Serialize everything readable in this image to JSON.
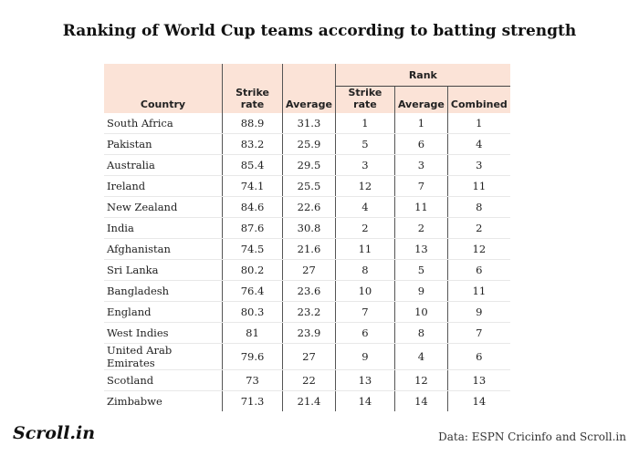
{
  "title": "Ranking of World Cup teams according to batting strength",
  "chart_data": {
    "type": "table",
    "group_header": "Rank",
    "columns": [
      "Country",
      "Strike rate",
      "Average",
      "Strike rate",
      "Average",
      "Combined"
    ],
    "rows": [
      [
        "South Africa",
        "88.9",
        "31.3",
        "1",
        "1",
        "1"
      ],
      [
        "Pakistan",
        "83.2",
        "25.9",
        "5",
        "6",
        "4"
      ],
      [
        "Australia",
        "85.4",
        "29.5",
        "3",
        "3",
        "3"
      ],
      [
        "Ireland",
        "74.1",
        "25.5",
        "12",
        "7",
        "11"
      ],
      [
        "New Zealand",
        "84.6",
        "22.6",
        "4",
        "11",
        "8"
      ],
      [
        "India",
        "87.6",
        "30.8",
        "2",
        "2",
        "2"
      ],
      [
        "Afghanistan",
        "74.5",
        "21.6",
        "11",
        "13",
        "12"
      ],
      [
        "Sri Lanka",
        "80.2",
        "27",
        "8",
        "5",
        "6"
      ],
      [
        "Bangladesh",
        "76.4",
        "23.6",
        "10",
        "9",
        "11"
      ],
      [
        "England",
        "80.3",
        "23.2",
        "7",
        "10",
        "9"
      ],
      [
        "West Indies",
        "81",
        "23.9",
        "6",
        "8",
        "7"
      ],
      [
        "United Arab Emirates",
        "79.6",
        "27",
        "9",
        "4",
        "6"
      ],
      [
        "Scotland",
        "73",
        "22",
        "13",
        "12",
        "13"
      ],
      [
        "Zimbabwe",
        "71.3",
        "21.4",
        "14",
        "14",
        "14"
      ]
    ]
  },
  "footer": {
    "logo": "Scroll.in",
    "source": "Data: ESPN Cricinfo and Scroll.in"
  },
  "colors": {
    "header_bg": "#fbe3d7"
  }
}
